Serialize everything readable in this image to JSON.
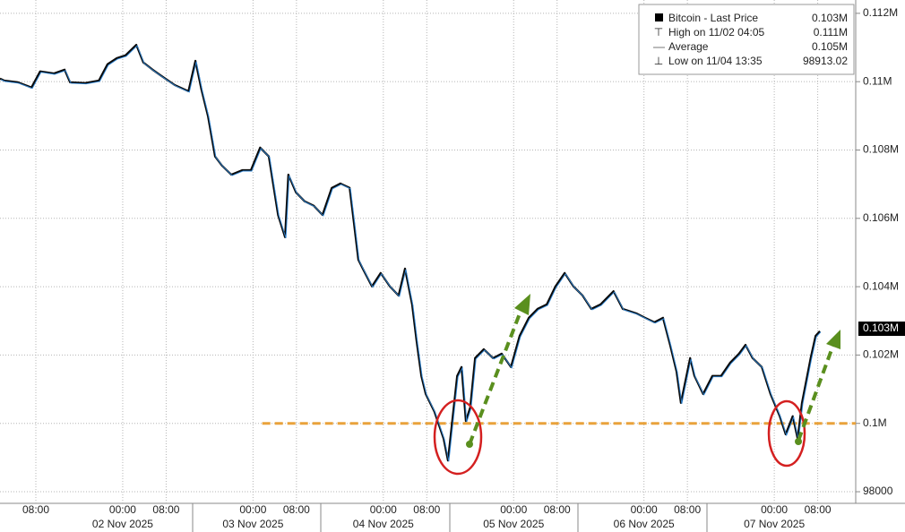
{
  "chart_data": {
    "type": "line",
    "series": [
      {
        "name": "Bitcoin - Last Price",
        "color": "#0a0a0a",
        "highlight": "#2f86d6",
        "x": [
          1.4,
          2.2,
          4.7,
          7.2,
          8.8,
          11.3,
          13.3,
          14.3,
          17.1,
          19.6,
          21.2,
          22.9,
          24.5,
          26.5,
          27.8,
          29.5,
          31.1,
          33.6,
          36.1,
          37.4,
          38.5,
          39.7,
          41.0,
          42.3,
          44.0,
          46.0,
          47.6,
          49.3,
          50.9,
          52.6,
          53.9,
          54.5,
          55.9,
          57.5,
          59.2,
          60.8,
          62.5,
          64.1,
          65.8,
          66.6,
          67.4,
          68.2,
          69.9,
          71.5,
          73.2,
          74.8,
          76.0,
          77.3,
          78.1,
          79.0,
          79.8,
          81.4,
          83.1,
          83.9,
          85.6,
          86.4,
          87.2,
          88.0,
          88.9,
          90.5,
          92.2,
          93.8,
          95.5,
          97.1,
          98.8,
          100.4,
          102.1,
          103.7,
          105.4,
          107.0,
          108.7,
          110.3,
          112.0,
          114.4,
          116.1,
          118.6,
          120.2,
          121.9,
          123.5,
          124.8,
          126.0,
          126.8,
          128.5,
          129.3,
          130.9,
          132.6,
          134.2,
          135.9,
          137.5,
          138.7,
          140.0,
          141.7,
          143.3,
          145.0,
          146.1,
          147.4,
          148.3,
          149.1,
          150.7,
          151.6,
          152.4
        ],
        "values": [
          110090,
          110030,
          109980,
          109830,
          110300,
          110240,
          110350,
          109980,
          109960,
          110030,
          110510,
          110690,
          110770,
          111080,
          110560,
          110350,
          110170,
          109900,
          109720,
          110610,
          109770,
          108990,
          107810,
          107540,
          107280,
          107410,
          107410,
          108070,
          107810,
          106100,
          105450,
          107280,
          106760,
          106500,
          106370,
          106100,
          106890,
          107020,
          106890,
          105840,
          104790,
          104530,
          104010,
          104400,
          104010,
          103740,
          104530,
          103480,
          102430,
          101390,
          100860,
          100340,
          99550,
          98913,
          101390,
          101650,
          100070,
          100470,
          101910,
          102170,
          101910,
          102040,
          101650,
          102560,
          103090,
          103350,
          103480,
          104010,
          104400,
          104010,
          103740,
          103350,
          103480,
          103870,
          103350,
          103220,
          103090,
          102960,
          103090,
          102300,
          101520,
          100600,
          101910,
          101390,
          100860,
          101390,
          101390,
          101780,
          102040,
          102300,
          101910,
          101650,
          100860,
          100210,
          99680,
          100210,
          99550,
          100600,
          101910,
          102560,
          102700
        ]
      }
    ],
    "ylim": [
      97660,
      112390
    ],
    "yticks": [
      {
        "value": 112000,
        "label": "0.112M"
      },
      {
        "value": 110000,
        "label": "0.11M"
      },
      {
        "value": 108000,
        "label": "0.108M"
      },
      {
        "value": 106000,
        "label": "0.106M"
      },
      {
        "value": 104000,
        "label": "0.104M"
      },
      {
        "value": 102000,
        "label": "0.102M"
      },
      {
        "value": 100000,
        "label": "0.1M"
      },
      98000
    ],
    "xlim": [
      1.4,
      159.0
    ],
    "xticks": [
      {
        "value": 8,
        "label": "08:00"
      },
      {
        "value": 24,
        "label": "00:00"
      },
      {
        "value": 32,
        "label": "08:00"
      },
      {
        "value": 48,
        "label": "00:00"
      },
      {
        "value": 56,
        "label": "08:00"
      },
      {
        "value": 72,
        "label": "00:00"
      },
      {
        "value": 80,
        "label": "08:00"
      },
      {
        "value": 96,
        "label": "00:00"
      },
      {
        "value": 104,
        "label": "08:00"
      },
      {
        "value": 120,
        "label": "00:00"
      },
      {
        "value": 128,
        "label": "08:00"
      },
      {
        "value": 144,
        "label": "00:00"
      },
      {
        "value": 152,
        "label": "08:00"
      }
    ],
    "x_dates": [
      {
        "value": 24,
        "label": "02 Nov 2025"
      },
      {
        "value": 48,
        "label": "03 Nov 2025"
      },
      {
        "value": 72,
        "label": "04 Nov 2025"
      },
      {
        "value": 96,
        "label": "05 Nov 2025"
      },
      {
        "value": 120,
        "label": "06 Nov 2025"
      },
      {
        "value": 144,
        "label": "07 Nov 2025"
      }
    ],
    "grid": true,
    "last_price": {
      "value": 102770,
      "label": "0.103M"
    },
    "reference_line": {
      "value": 100000,
      "x_start": 49.7,
      "color": "#e9a23b"
    },
    "legend_stats": [
      {
        "name": "High on 11/02 04:05",
        "value": {
          "value": 111000,
          "label": "0.111M"
        }
      },
      {
        "name": "Average",
        "value": {
          "value": 105000,
          "label": "0.105M"
        }
      },
      {
        "name": "Low on 11/04 13:35",
        "value": 98913.02
      }
    ]
  }
}
